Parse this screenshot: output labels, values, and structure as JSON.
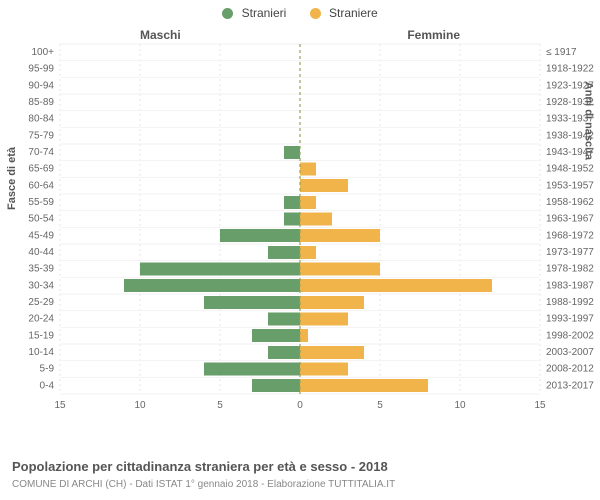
{
  "legend": {
    "male": {
      "label": "Stranieri",
      "color": "#689e69"
    },
    "female": {
      "label": "Straniere",
      "color": "#f1b44a"
    }
  },
  "columns": {
    "left": "Maschi",
    "right": "Femmine"
  },
  "axis_titles": {
    "left": "Fasce di età",
    "right": "Anni di nascita"
  },
  "caption": "Popolazione per cittadinanza straniera per età e sesso - 2018",
  "subcaption": "COMUNE DI ARCHI (CH) - Dati ISTAT 1° gennaio 2018 - Elaborazione TUTTITALIA.IT",
  "chart": {
    "type": "population-pyramid",
    "x_ticks": [
      15,
      10,
      5,
      0,
      5,
      10,
      15
    ],
    "x_max": 15,
    "bar_gap_ratio": 0.22,
    "grid_color": "#e6e6e6",
    "grid_dash": "2 3",
    "centerline_color": "#9aa05a",
    "background_color": "#ffffff",
    "male_color": "#689e69",
    "female_color": "#f1b44a",
    "label_fontsize": 10,
    "rows": [
      {
        "age": "100+",
        "birth": "≤ 1917",
        "m": 0,
        "f": 0
      },
      {
        "age": "95-99",
        "birth": "1918-1922",
        "m": 0,
        "f": 0
      },
      {
        "age": "90-94",
        "birth": "1923-1927",
        "m": 0,
        "f": 0
      },
      {
        "age": "85-89",
        "birth": "1928-1932",
        "m": 0,
        "f": 0
      },
      {
        "age": "80-84",
        "birth": "1933-1937",
        "m": 0,
        "f": 0
      },
      {
        "age": "75-79",
        "birth": "1938-1942",
        "m": 0,
        "f": 0
      },
      {
        "age": "70-74",
        "birth": "1943-1947",
        "m": 1,
        "f": 0
      },
      {
        "age": "65-69",
        "birth": "1948-1952",
        "m": 0,
        "f": 1
      },
      {
        "age": "60-64",
        "birth": "1953-1957",
        "m": 0,
        "f": 3
      },
      {
        "age": "55-59",
        "birth": "1958-1962",
        "m": 1,
        "f": 1
      },
      {
        "age": "50-54",
        "birth": "1963-1967",
        "m": 1,
        "f": 2
      },
      {
        "age": "45-49",
        "birth": "1968-1972",
        "m": 5,
        "f": 5
      },
      {
        "age": "40-44",
        "birth": "1973-1977",
        "m": 2,
        "f": 1
      },
      {
        "age": "35-39",
        "birth": "1978-1982",
        "m": 10,
        "f": 5
      },
      {
        "age": "30-34",
        "birth": "1983-1987",
        "m": 11,
        "f": 12
      },
      {
        "age": "25-29",
        "birth": "1988-1992",
        "m": 6,
        "f": 4
      },
      {
        "age": "20-24",
        "birth": "1993-1997",
        "m": 2,
        "f": 3
      },
      {
        "age": "15-19",
        "birth": "1998-2002",
        "m": 3,
        "f": 0.5
      },
      {
        "age": "10-14",
        "birth": "2003-2007",
        "m": 2,
        "f": 4
      },
      {
        "age": "5-9",
        "birth": "2008-2012",
        "m": 6,
        "f": 3
      },
      {
        "age": "0-4",
        "birth": "2013-2017",
        "m": 3,
        "f": 8
      }
    ]
  }
}
